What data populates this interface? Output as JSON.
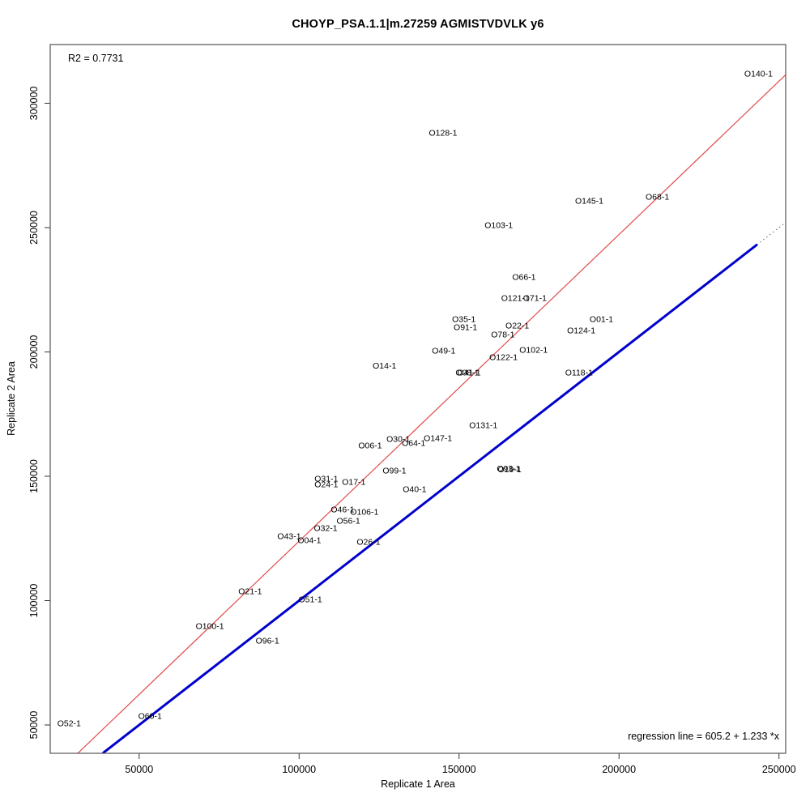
{
  "chart_data": {
    "type": "scatter",
    "title": "CHOYP_PSA.1.1|m.27259 AGMISTVDVLK y6",
    "xlabel": "Replicate 1 Area",
    "ylabel": "Replicate 2 Area",
    "xlim": [
      22200,
      252100
    ],
    "ylim": [
      38600,
      323600
    ],
    "x_ticks": [
      50000,
      100000,
      150000,
      200000,
      250000
    ],
    "y_ticks": [
      50000,
      100000,
      150000,
      200000,
      250000,
      300000
    ],
    "grid": false,
    "legend": "none",
    "annotations": {
      "r2": "R2 = 0.7731",
      "equation": "regression line = 605.2 + 1.233 *x"
    },
    "regression_line": {
      "intercept": 605.2,
      "slope": 1.233,
      "color": "#e04b4b",
      "width": 1.2
    },
    "identity_line_dotted": {
      "color": "#666666",
      "range": [
        22200,
        252100
      ],
      "width": 1
    },
    "identity_segment_solid": {
      "color": "#0000cd",
      "range": [
        38600,
        243200
      ],
      "width": 3
    },
    "frame_color": "#555555",
    "points": [
      {
        "label": "O140-1",
        "x": 243600,
        "y": 311900
      },
      {
        "label": "O128-1",
        "x": 145000,
        "y": 288100
      },
      {
        "label": "O68-1",
        "x": 212000,
        "y": 262400
      },
      {
        "label": "O145-1",
        "x": 190700,
        "y": 260700
      },
      {
        "label": "O103-1",
        "x": 162400,
        "y": 251000
      },
      {
        "label": "O66-1",
        "x": 170300,
        "y": 230100
      },
      {
        "label": "O121-1",
        "x": 167600,
        "y": 221600
      },
      {
        "label": "O71-1",
        "x": 173700,
        "y": 221600
      },
      {
        "label": "O35-1",
        "x": 151500,
        "y": 213200
      },
      {
        "label": "O01-1",
        "x": 194500,
        "y": 213200
      },
      {
        "label": "O22-1",
        "x": 168200,
        "y": 210600
      },
      {
        "label": "O91-1",
        "x": 152000,
        "y": 209900
      },
      {
        "label": "O124-1",
        "x": 188200,
        "y": 208600
      },
      {
        "label": "O78-1",
        "x": 163700,
        "y": 207000
      },
      {
        "label": "O49-1",
        "x": 145200,
        "y": 200500
      },
      {
        "label": "O102-1",
        "x": 173300,
        "y": 200800
      },
      {
        "label": "O122-1",
        "x": 163900,
        "y": 197900
      },
      {
        "label": "O14-1",
        "x": 126700,
        "y": 194400
      },
      {
        "label": "O08-1",
        "x": 152600,
        "y": 191700
      },
      {
        "label": "O41-1",
        "x": 153100,
        "y": 191700
      },
      {
        "label": "O118-1",
        "x": 187500,
        "y": 191700
      },
      {
        "label": "O131-1",
        "x": 157600,
        "y": 170500
      },
      {
        "label": "O147-1",
        "x": 143400,
        "y": 165300
      },
      {
        "label": "O30-1",
        "x": 131000,
        "y": 165000
      },
      {
        "label": "O64-1",
        "x": 135800,
        "y": 163300
      },
      {
        "label": "O06-1",
        "x": 122200,
        "y": 162400
      },
      {
        "label": "O99-1",
        "x": 129800,
        "y": 152300
      },
      {
        "label": "O93-1",
        "x": 165500,
        "y": 153100
      },
      {
        "label": "O19-1",
        "x": 165800,
        "y": 152700
      },
      {
        "label": "O31-1",
        "x": 108500,
        "y": 149000
      },
      {
        "label": "O17-1",
        "x": 117100,
        "y": 147700
      },
      {
        "label": "O24-1",
        "x": 108500,
        "y": 146700
      },
      {
        "label": "O40-1",
        "x": 136100,
        "y": 144800
      },
      {
        "label": "O46-1",
        "x": 113600,
        "y": 136600
      },
      {
        "label": "O106-1",
        "x": 120400,
        "y": 135700
      },
      {
        "label": "O56-1",
        "x": 115400,
        "y": 132100
      },
      {
        "label": "O32-1",
        "x": 108300,
        "y": 129100
      },
      {
        "label": "O43-1",
        "x": 96900,
        "y": 125900
      },
      {
        "label": "O04-1",
        "x": 103200,
        "y": 124300
      },
      {
        "label": "O26-1",
        "x": 121700,
        "y": 123600
      },
      {
        "label": "O21-1",
        "x": 84700,
        "y": 103700
      },
      {
        "label": "O51-1",
        "x": 103500,
        "y": 100500
      },
      {
        "label": "O100-1",
        "x": 72100,
        "y": 89700
      },
      {
        "label": "O96-1",
        "x": 90100,
        "y": 83900
      },
      {
        "label": "O60-1",
        "x": 53400,
        "y": 53600
      },
      {
        "label": "O52-1",
        "x": 28100,
        "y": 50700
      }
    ]
  }
}
